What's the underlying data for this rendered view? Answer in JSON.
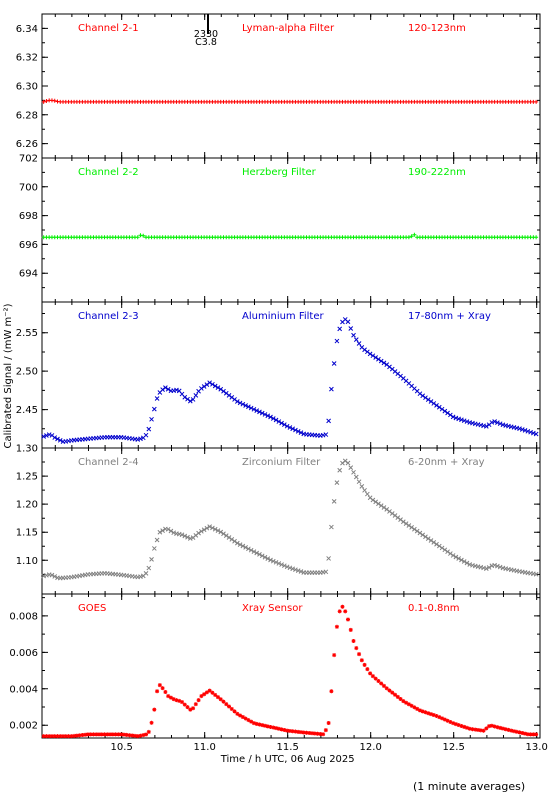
{
  "footer_note": "(1 minute averages)",
  "flare_marker": {
    "time_label": "2330",
    "class_label": "C3.8",
    "x": 11.02
  },
  "chart_data": [
    {
      "type": "scatter",
      "channel_label": "Channel 2-1",
      "filter_label": "Lyman-alpha Filter",
      "band_label": "120-123nm",
      "color": "#ff0000",
      "marker": "+",
      "ylim": [
        6.25,
        6.35
      ],
      "yticks": [
        6.26,
        6.28,
        6.3,
        6.32,
        6.34
      ],
      "ytick_labels": [
        "6.26",
        "6.28",
        "6.30",
        "6.32",
        "6.34"
      ],
      "profile": [
        [
          10.03,
          6.289
        ],
        [
          10.06,
          6.29
        ],
        [
          10.09,
          6.29
        ],
        [
          10.12,
          6.289
        ],
        [
          10.2,
          6.289
        ],
        [
          13.0,
          6.289
        ]
      ]
    },
    {
      "type": "scatter",
      "channel_label": "Channel 2-2",
      "filter_label": "Herzberg Filter",
      "band_label": "190-222nm",
      "color": "#00ee00",
      "marker": "+",
      "ylim": [
        692,
        702
      ],
      "yticks": [
        694,
        696,
        698,
        700,
        702
      ],
      "ytick_labels": [
        "694",
        "696",
        "698",
        "700",
        "702"
      ],
      "profile": [
        [
          10.03,
          696.5
        ],
        [
          10.6,
          696.5
        ],
        [
          10.62,
          696.7
        ],
        [
          10.64,
          696.5
        ],
        [
          12.24,
          696.5
        ],
        [
          12.26,
          696.7
        ],
        [
          12.28,
          696.5
        ],
        [
          13.0,
          696.5
        ]
      ]
    },
    {
      "type": "scatter",
      "channel_label": "Channel 2-3",
      "filter_label": "Aluminium Filter",
      "band_label": "17-80nm + Xray",
      "color": "#0000cc",
      "marker": "×",
      "ylim": [
        2.4,
        2.59
      ],
      "yticks": [
        2.45,
        2.5,
        2.55
      ],
      "ytick_labels": [
        "2.45",
        "2.50",
        "2.55"
      ],
      "profile": [
        [
          10.03,
          2.415
        ],
        [
          10.07,
          2.418
        ],
        [
          10.1,
          2.413
        ],
        [
          10.15,
          2.408
        ],
        [
          10.2,
          2.41
        ],
        [
          10.3,
          2.412
        ],
        [
          10.4,
          2.414
        ],
        [
          10.5,
          2.414
        ],
        [
          10.6,
          2.411
        ],
        [
          10.64,
          2.414
        ],
        [
          10.66,
          2.422
        ],
        [
          10.69,
          2.445
        ],
        [
          10.72,
          2.47
        ],
        [
          10.76,
          2.479
        ],
        [
          10.8,
          2.474
        ],
        [
          10.84,
          2.476
        ],
        [
          10.88,
          2.466
        ],
        [
          10.92,
          2.46
        ],
        [
          10.97,
          2.476
        ],
        [
          11.03,
          2.485
        ],
        [
          11.1,
          2.476
        ],
        [
          11.2,
          2.46
        ],
        [
          11.3,
          2.45
        ],
        [
          11.4,
          2.44
        ],
        [
          11.5,
          2.428
        ],
        [
          11.6,
          2.418
        ],
        [
          11.7,
          2.416
        ],
        [
          11.74,
          2.418
        ],
        [
          11.76,
          2.47
        ],
        [
          11.78,
          2.51
        ],
        [
          11.8,
          2.545
        ],
        [
          11.82,
          2.56
        ],
        [
          11.84,
          2.568
        ],
        [
          11.86,
          2.566
        ],
        [
          11.9,
          2.545
        ],
        [
          11.95,
          2.53
        ],
        [
          12.0,
          2.522
        ],
        [
          12.1,
          2.508
        ],
        [
          12.2,
          2.49
        ],
        [
          12.3,
          2.47
        ],
        [
          12.4,
          2.455
        ],
        [
          12.5,
          2.44
        ],
        [
          12.6,
          2.433
        ],
        [
          12.7,
          2.428
        ],
        [
          12.74,
          2.435
        ],
        [
          12.8,
          2.43
        ],
        [
          12.9,
          2.425
        ],
        [
          13.0,
          2.418
        ]
      ]
    },
    {
      "type": "scatter",
      "channel_label": "Channel 2-4",
      "filter_label": "Zirconium Filter",
      "band_label": "6-20nm + Xray",
      "color": "#808080",
      "marker": "×",
      "ylim": [
        1.04,
        1.3
      ],
      "yticks": [
        1.1,
        1.15,
        1.2,
        1.25,
        1.3
      ],
      "ytick_labels": [
        "1.10",
        "1.15",
        "1.20",
        "1.25",
        "1.30"
      ],
      "profile": [
        [
          10.03,
          1.072
        ],
        [
          10.07,
          1.075
        ],
        [
          10.12,
          1.068
        ],
        [
          10.2,
          1.07
        ],
        [
          10.3,
          1.075
        ],
        [
          10.4,
          1.077
        ],
        [
          10.5,
          1.074
        ],
        [
          10.6,
          1.07
        ],
        [
          10.64,
          1.073
        ],
        [
          10.67,
          1.09
        ],
        [
          10.7,
          1.125
        ],
        [
          10.73,
          1.15
        ],
        [
          10.77,
          1.157
        ],
        [
          10.82,
          1.148
        ],
        [
          10.86,
          1.146
        ],
        [
          10.92,
          1.138
        ],
        [
          10.97,
          1.15
        ],
        [
          11.03,
          1.16
        ],
        [
          11.1,
          1.15
        ],
        [
          11.2,
          1.13
        ],
        [
          11.3,
          1.115
        ],
        [
          11.4,
          1.1
        ],
        [
          11.5,
          1.088
        ],
        [
          11.6,
          1.078
        ],
        [
          11.7,
          1.078
        ],
        [
          11.74,
          1.08
        ],
        [
          11.76,
          1.15
        ],
        [
          11.78,
          1.205
        ],
        [
          11.8,
          1.245
        ],
        [
          11.82,
          1.268
        ],
        [
          11.84,
          1.278
        ],
        [
          11.86,
          1.275
        ],
        [
          11.9,
          1.255
        ],
        [
          11.95,
          1.23
        ],
        [
          12.0,
          1.21
        ],
        [
          12.1,
          1.19
        ],
        [
          12.2,
          1.168
        ],
        [
          12.3,
          1.148
        ],
        [
          12.4,
          1.128
        ],
        [
          12.5,
          1.108
        ],
        [
          12.6,
          1.092
        ],
        [
          12.7,
          1.085
        ],
        [
          12.74,
          1.092
        ],
        [
          12.8,
          1.086
        ],
        [
          12.9,
          1.08
        ],
        [
          13.0,
          1.075
        ]
      ]
    },
    {
      "type": "scatter",
      "channel_label": "GOES",
      "filter_label": "Xray Sensor",
      "band_label": "0.1-0.8nm",
      "color": "#ff0000",
      "marker": "*",
      "xlabel": "Time / h UTC, 06 Aug 2025",
      "ylim": [
        0.0013,
        0.0092
      ],
      "yticks": [
        0.002,
        0.004,
        0.006,
        0.008
      ],
      "ytick_labels": [
        "0.002",
        "0.004",
        "0.006",
        "0.008"
      ],
      "profile": [
        [
          10.03,
          0.0014
        ],
        [
          10.2,
          0.0014
        ],
        [
          10.3,
          0.0015
        ],
        [
          10.4,
          0.0015
        ],
        [
          10.5,
          0.0015
        ],
        [
          10.6,
          0.0014
        ],
        [
          10.65,
          0.0015
        ],
        [
          10.67,
          0.0017
        ],
        [
          10.7,
          0.003
        ],
        [
          10.72,
          0.0043
        ],
        [
          10.75,
          0.004
        ],
        [
          10.78,
          0.0036
        ],
        [
          10.82,
          0.0034
        ],
        [
          10.86,
          0.0033
        ],
        [
          10.92,
          0.0028
        ],
        [
          10.98,
          0.0036
        ],
        [
          11.03,
          0.0039
        ],
        [
          11.1,
          0.0034
        ],
        [
          11.2,
          0.0026
        ],
        [
          11.3,
          0.0021
        ],
        [
          11.4,
          0.0019
        ],
        [
          11.5,
          0.0017
        ],
        [
          11.6,
          0.0016
        ],
        [
          11.72,
          0.0015
        ],
        [
          11.75,
          0.0022
        ],
        [
          11.77,
          0.0047
        ],
        [
          11.79,
          0.007
        ],
        [
          11.81,
          0.0082
        ],
        [
          11.83,
          0.0085
        ],
        [
          11.85,
          0.0082
        ],
        [
          11.87,
          0.0076
        ],
        [
          11.9,
          0.0065
        ],
        [
          11.95,
          0.0055
        ],
        [
          12.0,
          0.0048
        ],
        [
          12.1,
          0.004
        ],
        [
          12.2,
          0.0033
        ],
        [
          12.3,
          0.0028
        ],
        [
          12.4,
          0.0025
        ],
        [
          12.5,
          0.0021
        ],
        [
          12.6,
          0.0018
        ],
        [
          12.68,
          0.0017
        ],
        [
          12.72,
          0.002
        ],
        [
          12.76,
          0.0019
        ],
        [
          12.85,
          0.0017
        ],
        [
          12.95,
          0.0015
        ],
        [
          13.0,
          0.0015
        ]
      ]
    }
  ],
  "x_axis": {
    "xlim": [
      10.02,
      13.02
    ],
    "ticks": [
      10.5,
      11.0,
      11.5,
      12.0,
      12.5,
      13.0
    ],
    "tick_labels": [
      "10.5",
      "11.0",
      "11.5",
      "12.0",
      "12.5",
      "13.0"
    ]
  },
  "ylabel": "Calibrated Signal / (mW m⁻²)"
}
